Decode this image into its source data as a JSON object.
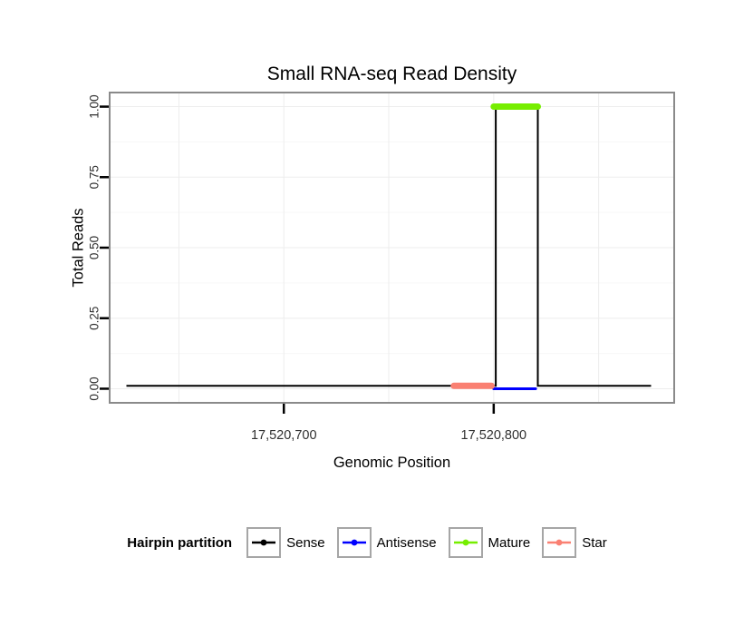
{
  "title": "Small RNA-seq Read Density",
  "x_axis": {
    "label": "Genomic Position"
  },
  "y_axis": {
    "label": "Total Reads"
  },
  "legend": {
    "title": "Hairpin partition",
    "items": [
      {
        "label": "Sense",
        "color": "#000000"
      },
      {
        "label": "Antisense",
        "color": "#0000FF"
      },
      {
        "label": "Mature",
        "color": "#76EE00"
      },
      {
        "label": "Star",
        "color": "#FA8072"
      }
    ]
  },
  "chart_data": {
    "type": "line",
    "title": "Small RNA-seq Read Density",
    "xlabel": "Genomic Position",
    "ylabel": "Total Reads",
    "xlim": [
      17520617,
      17520886
    ],
    "ylim": [
      -0.05,
      1.05
    ],
    "x_ticks": [
      {
        "value": 17520700,
        "label": "17,520,700"
      },
      {
        "value": 17520800,
        "label": "17,520,800"
      }
    ],
    "y_ticks": [
      {
        "value": 0,
        "label": "0.00"
      },
      {
        "value": 0.25,
        "label": "0.25"
      },
      {
        "value": 0.5,
        "label": "0.50"
      },
      {
        "value": 0.75,
        "label": "0.75"
      },
      {
        "value": 1,
        "label": "1.00"
      }
    ],
    "x_grid": [
      17520650,
      17520700,
      17520750,
      17520800,
      17520850
    ],
    "y_grid_major": [
      0,
      0.25,
      0.5,
      0.75,
      1
    ],
    "y_grid_minor": [
      0.125,
      0.375,
      0.625,
      0.875
    ],
    "grid_color_major": "#EDEDED",
    "grid_color_minor": "#F7F7F7",
    "panel_border_color": "#8A8A8A",
    "series": [
      {
        "name": "Sense",
        "type": "line",
        "color": "#000000",
        "width": 2,
        "points": [
          [
            17520625,
            0.01
          ],
          [
            17520801,
            0.01
          ],
          [
            17520801,
            1
          ],
          [
            17520821,
            1
          ],
          [
            17520821,
            0.01
          ],
          [
            17520875,
            0.01
          ]
        ]
      },
      {
        "name": "Antisense",
        "type": "segment",
        "color": "#0000FF",
        "width": 3,
        "x1": 17520800,
        "x2": 17520820,
        "y": 0
      },
      {
        "name": "Star",
        "type": "segment",
        "color": "#FA8072",
        "width": 7,
        "x1": 17520781,
        "x2": 17520799,
        "y": 0.01
      },
      {
        "name": "Mature",
        "type": "segment",
        "color": "#76EE00",
        "width": 7,
        "x1": 17520800,
        "x2": 17520821,
        "y": 1
      }
    ]
  }
}
